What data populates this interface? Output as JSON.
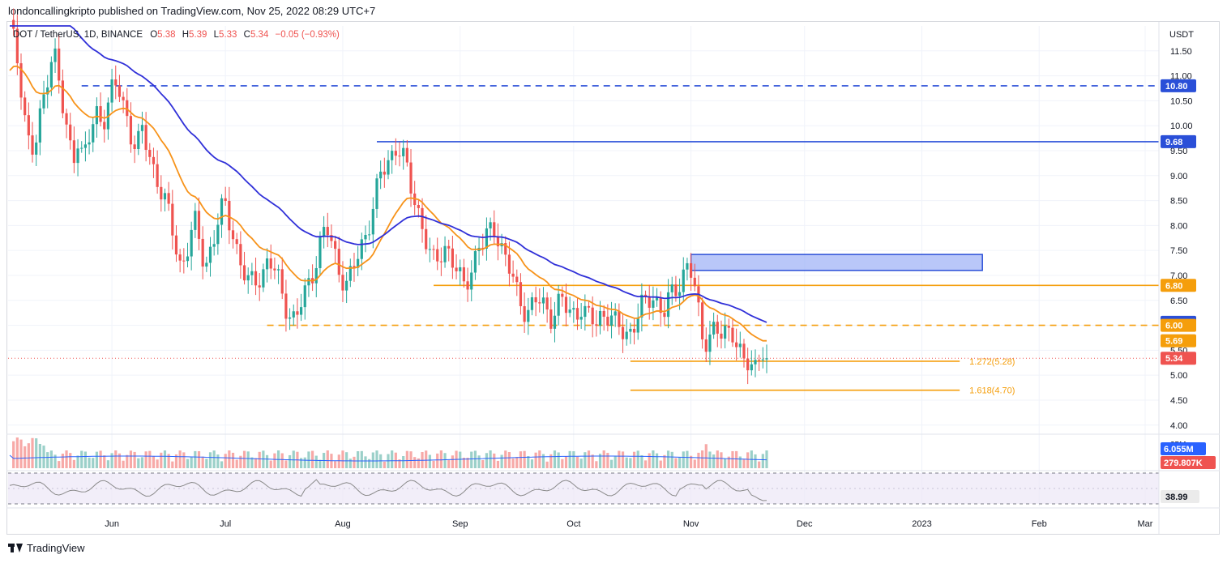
{
  "header": {
    "publisher": "londoncallingkripto published on TradingView.com, Nov 25, 2022 08:29 UTC+7"
  },
  "legend": {
    "symbol": "DOT / TetherUS, 1D, BINANCE",
    "open_label": "O",
    "open": "5.38",
    "high_label": "H",
    "high": "5.39",
    "low_label": "L",
    "low": "5.33",
    "close_label": "C",
    "close": "5.34",
    "change": "−0.05 (−0.93%)"
  },
  "footer": {
    "brand": "TradingView"
  },
  "colors": {
    "up": "#26a69a",
    "down": "#ef5350",
    "ema_fast": "#f7931a",
    "ema_slow": "#3030d8",
    "level_blue": "#2a4fd8",
    "level_orange": "#f59e0b",
    "rsi": "#8a8a8a",
    "zone_fill": "#a7b9f7"
  },
  "chart_data": {
    "type": "candlestick",
    "y_axis_label": "USDT",
    "ylim": [
      3.85,
      12.0
    ],
    "y_ticks": [
      "11.50",
      "11.00",
      "10.50",
      "10.00",
      "9.50",
      "9.00",
      "8.50",
      "8.00",
      "7.50",
      "7.00",
      "6.50",
      "6.00",
      "5.50",
      "5.00",
      "4.50",
      "4.00"
    ],
    "x_ticks": [
      "Jun",
      "Jul",
      "Aug",
      "Sep",
      "Oct",
      "Nov",
      "Dec",
      "2023",
      "Feb",
      "Mar"
    ],
    "price_labels": [
      {
        "text": "10.80",
        "value": 10.8,
        "color": "#2a4fd8"
      },
      {
        "text": "9.68",
        "value": 9.68,
        "color": "#2a4fd8"
      },
      {
        "text": "6.80",
        "value": 6.8,
        "color": "#f59e0b"
      },
      {
        "text": "6.06",
        "value": 6.06,
        "color": "#2a4fd8"
      },
      {
        "text": "6.00",
        "value": 6.0,
        "color": "#f59e0b"
      },
      {
        "text": "5.69",
        "value": 5.69,
        "color": "#f59e0b"
      },
      {
        "text": "5.34",
        "value": 5.34,
        "color": "#ef5350"
      }
    ],
    "levels": [
      {
        "value": 10.8,
        "style": "dashed",
        "color": "#2a4fd8",
        "from": "May 24"
      },
      {
        "value": 9.68,
        "style": "solid",
        "color": "#2a4fd8",
        "from": "Aug 10"
      },
      {
        "value": 6.8,
        "style": "solid",
        "color": "#f59e0b",
        "from": "Aug 25"
      },
      {
        "value": 6.0,
        "style": "dashed",
        "color": "#f59e0b",
        "from": "Jul 12"
      }
    ],
    "fib_levels": [
      {
        "label": "1.272(5.28)",
        "value": 5.28
      },
      {
        "label": "1.618(4.70)",
        "value": 4.7
      }
    ],
    "zone": {
      "from": "Nov 1",
      "to": "Jan 17",
      "low": 7.1,
      "high": 7.42
    },
    "ema_fast_last": 5.69,
    "ema_slow_last": 6.06,
    "volume": {
      "last_ma": "6.055M",
      "last_volume": "279.807K",
      "axis_tick": "25M"
    },
    "rsi": {
      "last": "38.99"
    },
    "closes": [
      12.0,
      11.6,
      11.1,
      10.3,
      9.6,
      9.4,
      10.0,
      10.6,
      11.2,
      11.6,
      10.9,
      10.2,
      9.7,
      9.4,
      9.8,
      9.3,
      9.6,
      10.0,
      10.3,
      10.1,
      10.4,
      10.7,
      10.8,
      10.5,
      10.2,
      9.8,
      9.5,
      9.9,
      9.6,
      9.3,
      9.0,
      8.7,
      8.4,
      8.0,
      7.6,
      7.2,
      7.4,
      7.8,
      8.0,
      7.6,
      7.2,
      7.5,
      7.8,
      8.2,
      8.4,
      8.1,
      7.8,
      7.3,
      7.0,
      6.8,
      6.9,
      7.0,
      7.1,
      7.3,
      7.1,
      6.9,
      6.6,
      6.3,
      6.1,
      6.2,
      6.5,
      6.8,
      7.1,
      7.4,
      7.8,
      7.9,
      7.6,
      7.3,
      7.0,
      6.8,
      7.0,
      7.3,
      7.6,
      7.9,
      8.2,
      8.6,
      9.0,
      9.2,
      9.4,
      9.6,
      9.5,
      9.2,
      8.8,
      8.5,
      8.2,
      7.8,
      7.4,
      7.2,
      7.4,
      7.6,
      7.5,
      7.2,
      6.9,
      6.8,
      7.0,
      7.3,
      7.6,
      7.6,
      7.8,
      8.0,
      7.8,
      7.5,
      7.2,
      6.9,
      6.6,
      6.4,
      6.3,
      6.4,
      6.5,
      6.4,
      6.3,
      6.2,
      6.4,
      6.5,
      6.3,
      6.2,
      6.3,
      6.4,
      6.2,
      6.1,
      6.0,
      6.2,
      6.3,
      6.2,
      6.0,
      5.9,
      5.8,
      5.9,
      6.1,
      6.3,
      6.4,
      6.5,
      6.6,
      6.4,
      6.3,
      6.5,
      6.6,
      6.8,
      7.1,
      7.3,
      6.9,
      6.2,
      5.6,
      5.8,
      6.0,
      5.9,
      5.7,
      5.8,
      5.9,
      5.7,
      5.4,
      5.1,
      5.2,
      5.3,
      5.38,
      5.34
    ]
  }
}
